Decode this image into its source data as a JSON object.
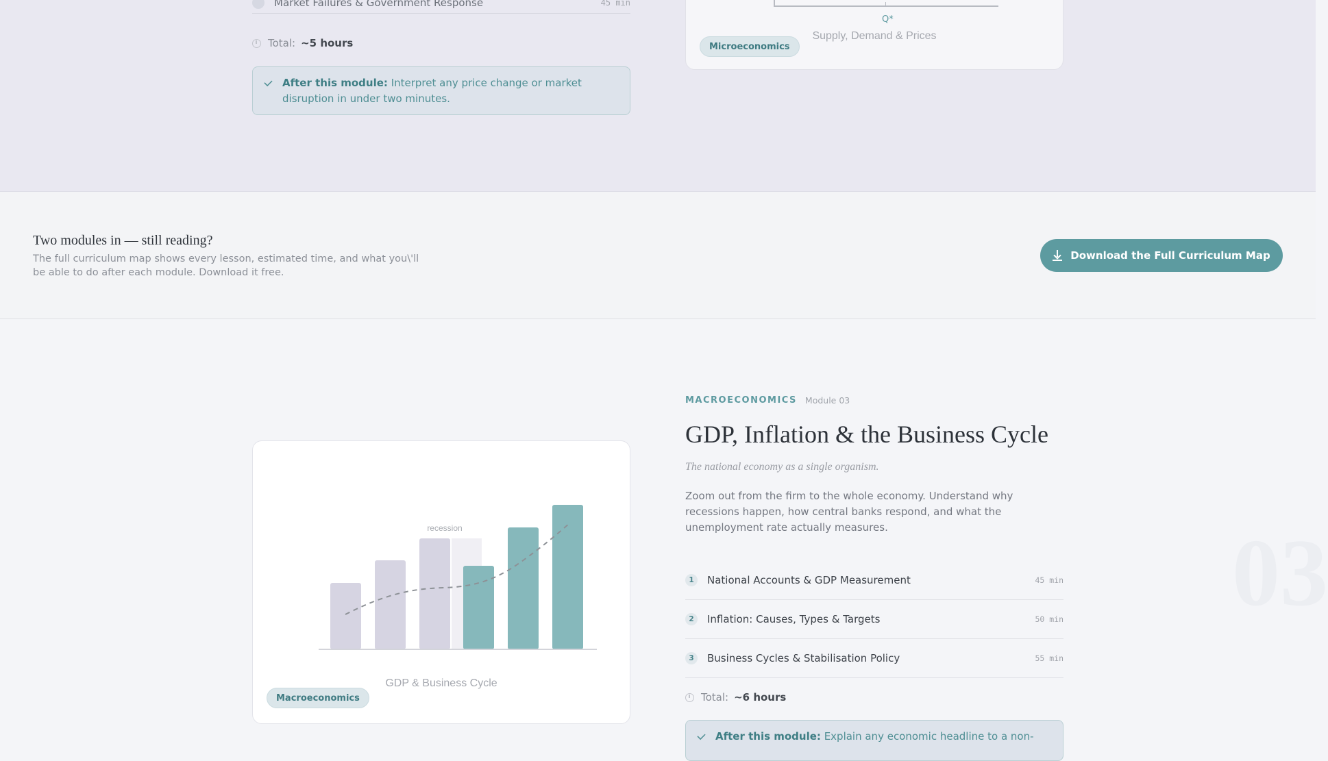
{
  "module2": {
    "partial_lesson_label": "Market Failures & Government Response",
    "partial_lesson_duration": "45 min",
    "total_label": "Total:",
    "total_value": "~5 hours",
    "after_label": "After this module:",
    "after_text": "Interpret any price change or market disruption in under two minutes.",
    "card": {
      "axis_label": "Q*",
      "caption": "Supply, Demand & Prices",
      "tag": "Microeconomics"
    }
  },
  "cta": {
    "title": "Two modules in — still reading?",
    "text": "The full curriculum map shows every lesson, estimated time, and what you\\'ll be able to do after each module. Download it free.",
    "button_label": "Download the Full Curriculum Map"
  },
  "module3": {
    "category": "MACROECONOMICS",
    "module_label": "Module 03",
    "title": "GDP, Inflation & the Business Cycle",
    "subtitle": "The national economy as a single organism.",
    "description": "Zoom out from the firm to the whole economy. Understand why recessions happen, how central banks respond, and what the unemployment rate actually measures.",
    "lessons": [
      {
        "num": "1",
        "label": "National Accounts & GDP Measurement",
        "duration": "45 min"
      },
      {
        "num": "2",
        "label": "Inflation: Causes, Types & Targets",
        "duration": "50 min"
      },
      {
        "num": "3",
        "label": "Business Cycles & Stabilisation Policy",
        "duration": "55 min"
      }
    ],
    "total_label": "Total:",
    "total_value": "~6 hours",
    "after_label": "After this module:",
    "after_text": "Explain any economic headline to a non-",
    "big_number": "03",
    "card": {
      "annotation": "recession",
      "caption": "GDP & Business Cycle",
      "tag": "Macroeconomics"
    }
  },
  "colors": {
    "accent": "#5d9ba0",
    "muted_bar": "#d6d4e2",
    "teal_bar": "#86b8bb"
  }
}
